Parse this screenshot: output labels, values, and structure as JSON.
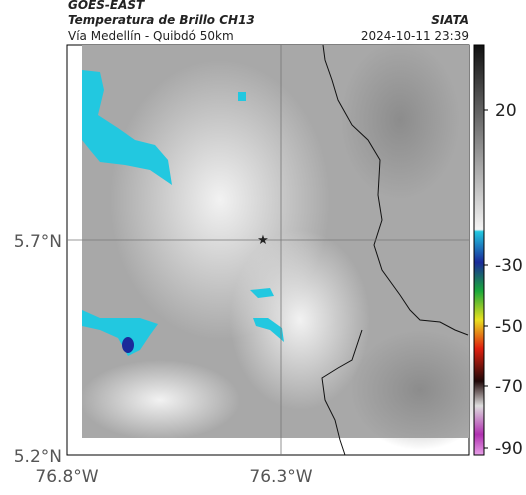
{
  "header": {
    "source": "GOES-EAST",
    "title": "Temperatura de Brillo CH13",
    "subtitle": "Vía Medellín - Quibdó 50km",
    "brand": "SIATA",
    "timestamp": "2024-10-11 23:39"
  },
  "map": {
    "lat_labels": [
      "5.7°N",
      "5.2°N"
    ],
    "lon_labels": [
      "76.8°W",
      "76.3°W"
    ]
  },
  "colorbar": {
    "labels": [
      "20",
      "-30",
      "-50",
      "-70",
      "-90"
    ]
  }
}
